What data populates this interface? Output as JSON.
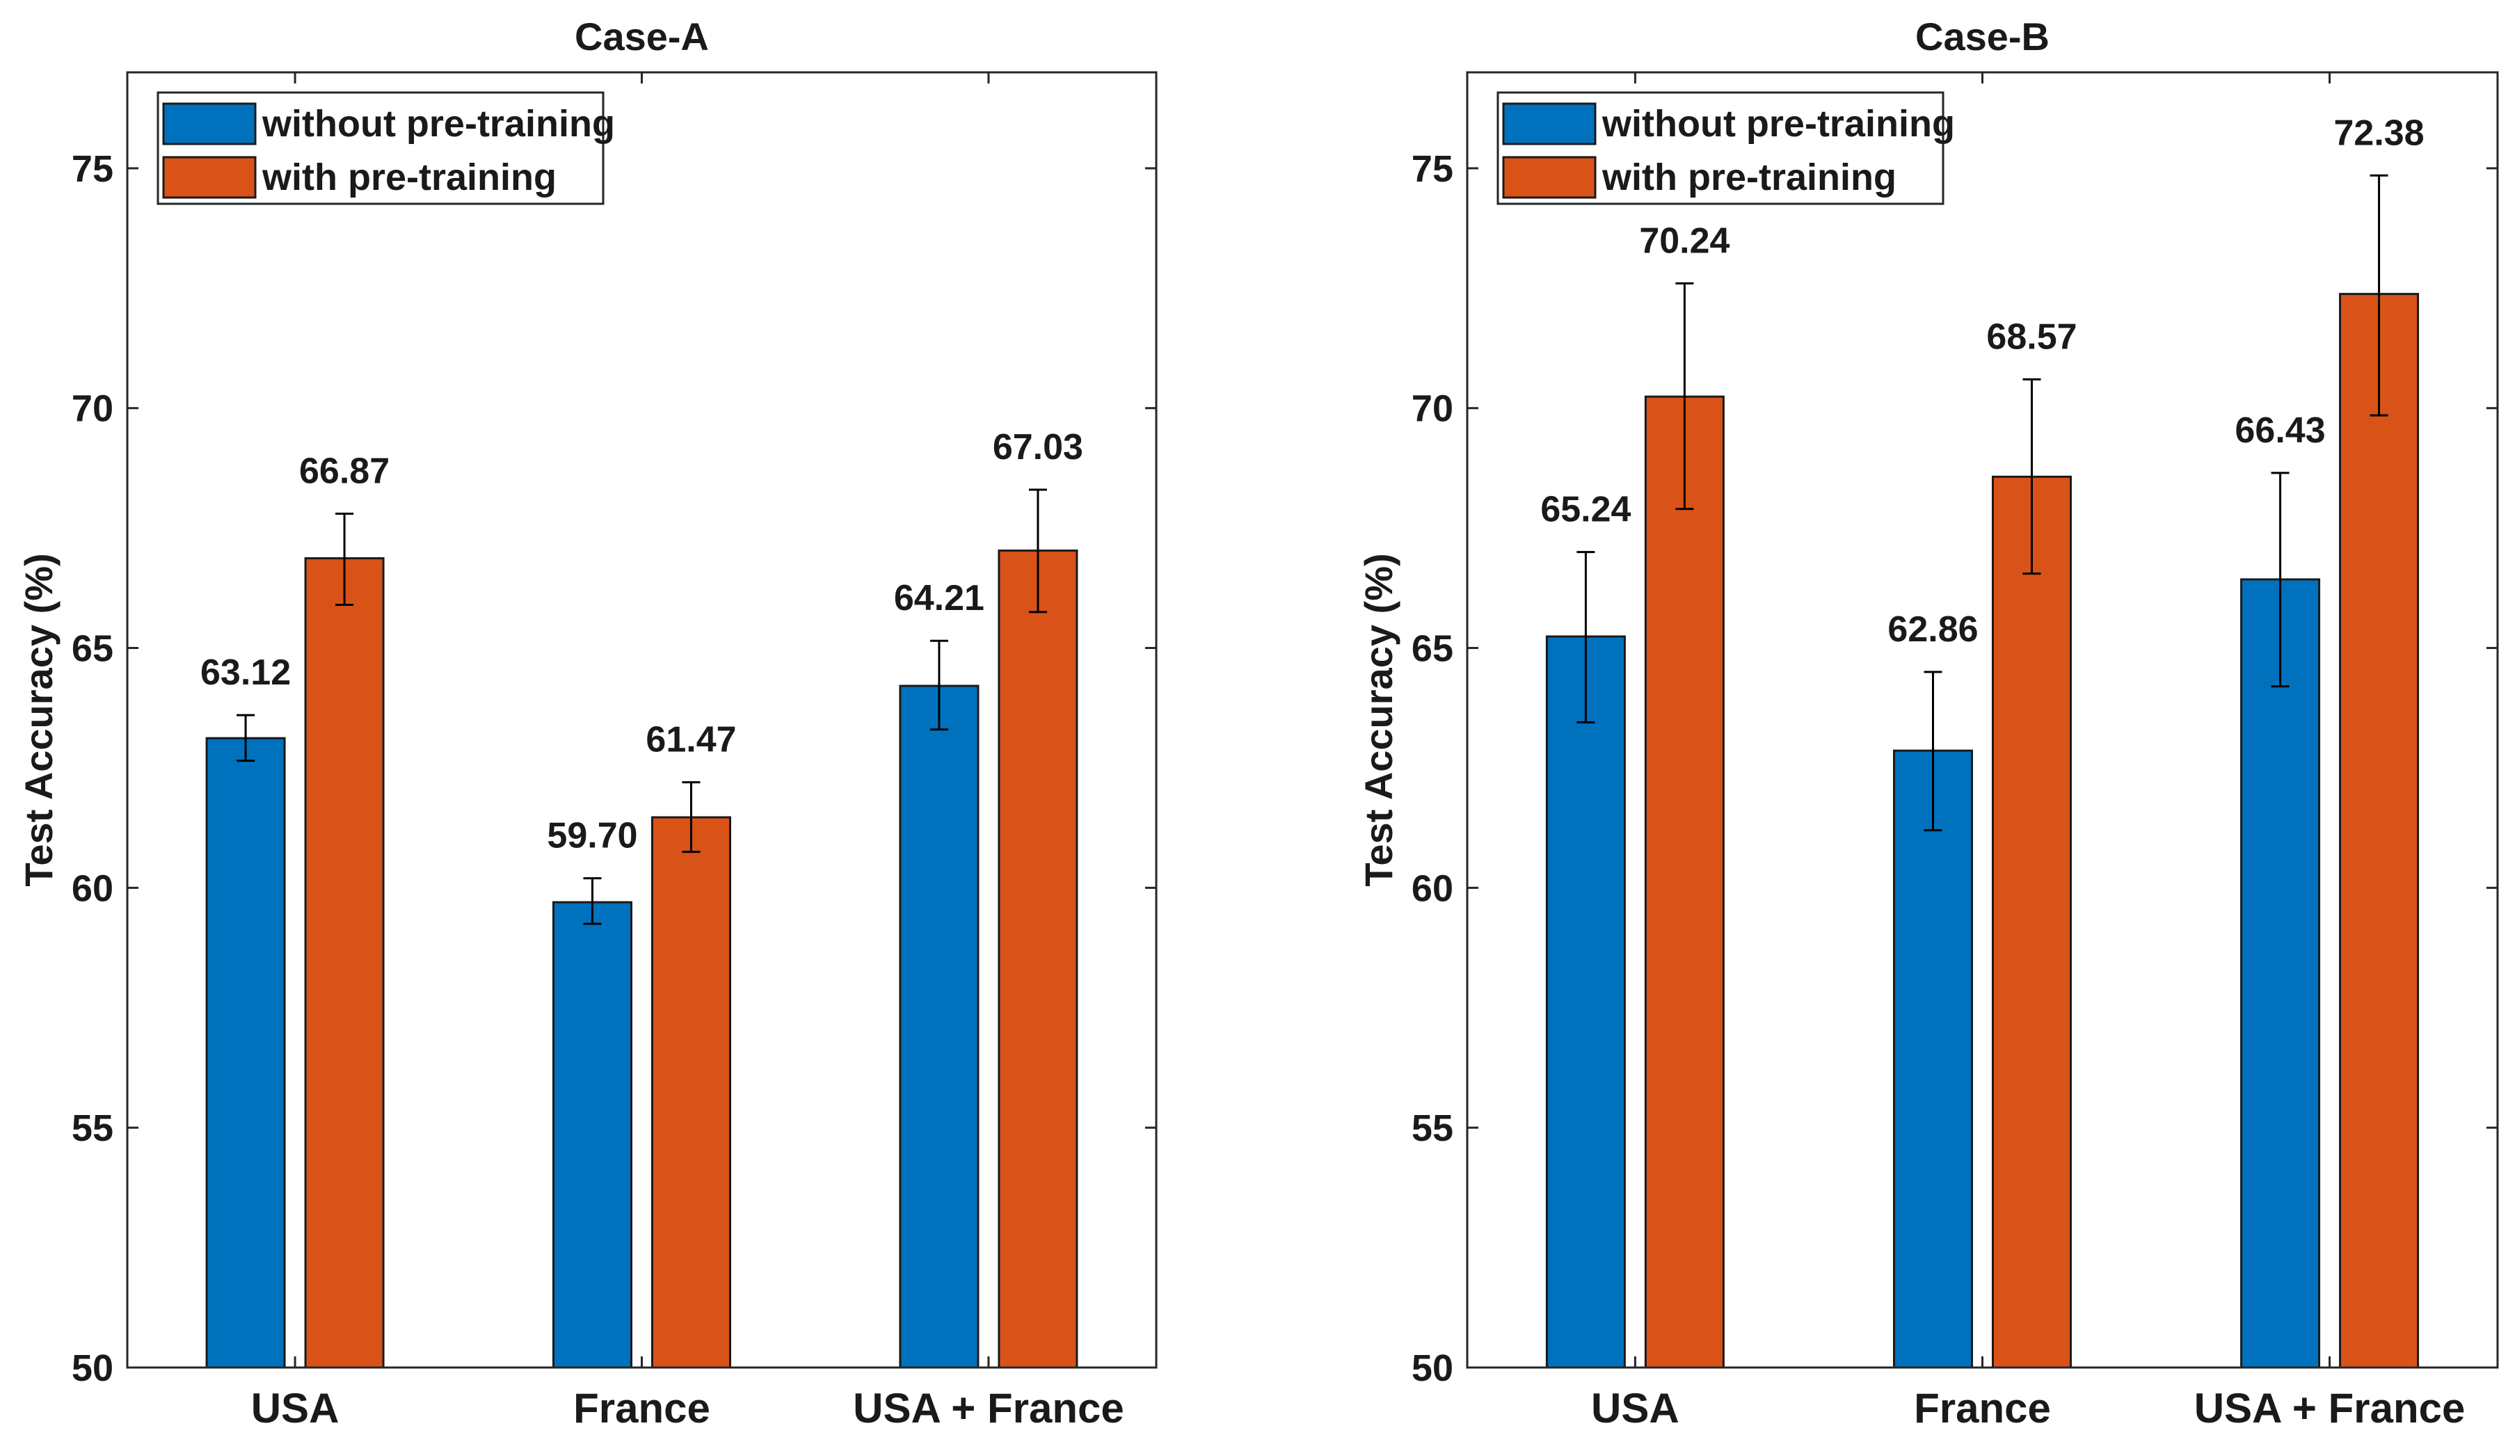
{
  "chart_data": [
    {
      "type": "bar",
      "title": "Case-A",
      "ylabel": "Test Accuracy (%)",
      "ylim": [
        50,
        77
      ],
      "yticks": [
        50,
        55,
        60,
        65,
        70,
        75
      ],
      "categories": [
        "USA",
        "France",
        "USA + France"
      ],
      "series": [
        {
          "name": "without pre-training",
          "color": "#0072BD",
          "values": [
            63.12,
            59.7,
            64.21
          ],
          "labels": [
            "63.12",
            "59.70",
            "64.21"
          ],
          "err_low": [
            62.65,
            59.25,
            63.3
          ],
          "err_high": [
            63.6,
            60.2,
            65.15
          ]
        },
        {
          "name": "with pre-training",
          "color": "#D95319",
          "values": [
            66.87,
            61.47,
            67.03
          ],
          "labels": [
            "66.87",
            "61.47",
            "67.03"
          ],
          "err_low": [
            65.9,
            60.75,
            65.75
          ],
          "err_high": [
            67.8,
            62.2,
            68.3
          ]
        }
      ],
      "legend": "top-left"
    },
    {
      "type": "bar",
      "title": "Case-B",
      "ylabel": "Test Accuracy (%)",
      "ylim": [
        50,
        77
      ],
      "yticks": [
        50,
        55,
        60,
        65,
        70,
        75
      ],
      "categories": [
        "USA",
        "France",
        "USA + France"
      ],
      "series": [
        {
          "name": "without pre-training",
          "color": "#0072BD",
          "values": [
            65.24,
            62.86,
            66.43
          ],
          "labels": [
            "65.24",
            "62.86",
            "66.43"
          ],
          "err_low": [
            63.45,
            61.2,
            64.2
          ],
          "err_high": [
            67.0,
            64.5,
            68.65
          ]
        },
        {
          "name": "with pre-training",
          "color": "#D95319",
          "values": [
            70.24,
            68.57,
            72.38
          ],
          "labels": [
            "70.24",
            "68.57",
            "72.38"
          ],
          "err_low": [
            67.9,
            66.55,
            69.85
          ],
          "err_high": [
            72.6,
            70.6,
            74.85
          ]
        }
      ],
      "legend": "top-left"
    }
  ]
}
